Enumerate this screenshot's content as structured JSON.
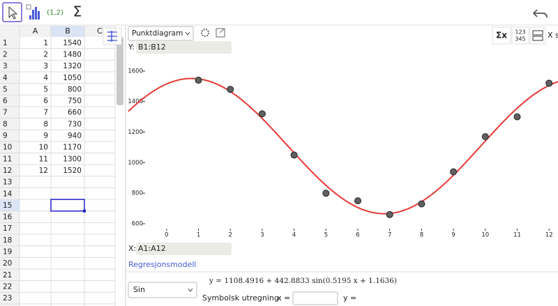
{
  "toolbar": {
    "tools": [
      "(1,2)",
      "Σ"
    ]
  },
  "spreadsheet": {
    "columns": [
      "A",
      "B",
      "C"
    ],
    "row_numbers": [
      1,
      2,
      3,
      4,
      5,
      6,
      7,
      8,
      9,
      10,
      11,
      12,
      13,
      14,
      15,
      16,
      17,
      18,
      19,
      20,
      21,
      22,
      23
    ],
    "cells": [
      [
        1,
        1540
      ],
      [
        2,
        1480
      ],
      [
        3,
        1320
      ],
      [
        4,
        1050
      ],
      [
        5,
        800
      ],
      [
        6,
        750
      ],
      [
        7,
        660
      ],
      [
        8,
        730
      ],
      [
        9,
        940
      ],
      [
        10,
        1170
      ],
      [
        11,
        1300
      ],
      [
        12,
        1520
      ]
    ]
  },
  "panel": {
    "plot_type": "Punktdiagram",
    "y_label": "Y:",
    "y_range": "B1:B12",
    "x_label": "X:",
    "x_range": "A1:A12",
    "icons": [
      "Σx",
      "123",
      "345",
      "X s"
    ],
    "model_link": "Regresjonsmodell",
    "model": "Sin",
    "equation": "y = 1108.4916 + 442.8833  sin(0.5195 x + 1.1636)",
    "symbolic_label": "Symbolsk utregning:",
    "x_input_label": "x =",
    "y_output_label": "y ="
  },
  "chart_data": {
    "type": "scatter",
    "x": [
      1,
      2,
      3,
      4,
      5,
      6,
      7,
      8,
      9,
      10,
      11,
      12
    ],
    "values": [
      1540,
      1480,
      1320,
      1050,
      800,
      750,
      660,
      730,
      940,
      1170,
      1300,
      1520
    ],
    "color": "#606060",
    "xlim": [
      -1.2,
      12.28
    ],
    "ylim": [
      568,
      1700
    ],
    "xticks": [
      0,
      1,
      2,
      3,
      4,
      5,
      6,
      7,
      8,
      9,
      10,
      11,
      12
    ],
    "yticks": [
      600,
      800,
      1000,
      1200,
      1400,
      1600
    ],
    "regression": {
      "intercept": 1108.4916,
      "amplitude": 442.8833,
      "frequency": 0.5195,
      "phase": 1.1636,
      "color": "#e53935"
    }
  }
}
